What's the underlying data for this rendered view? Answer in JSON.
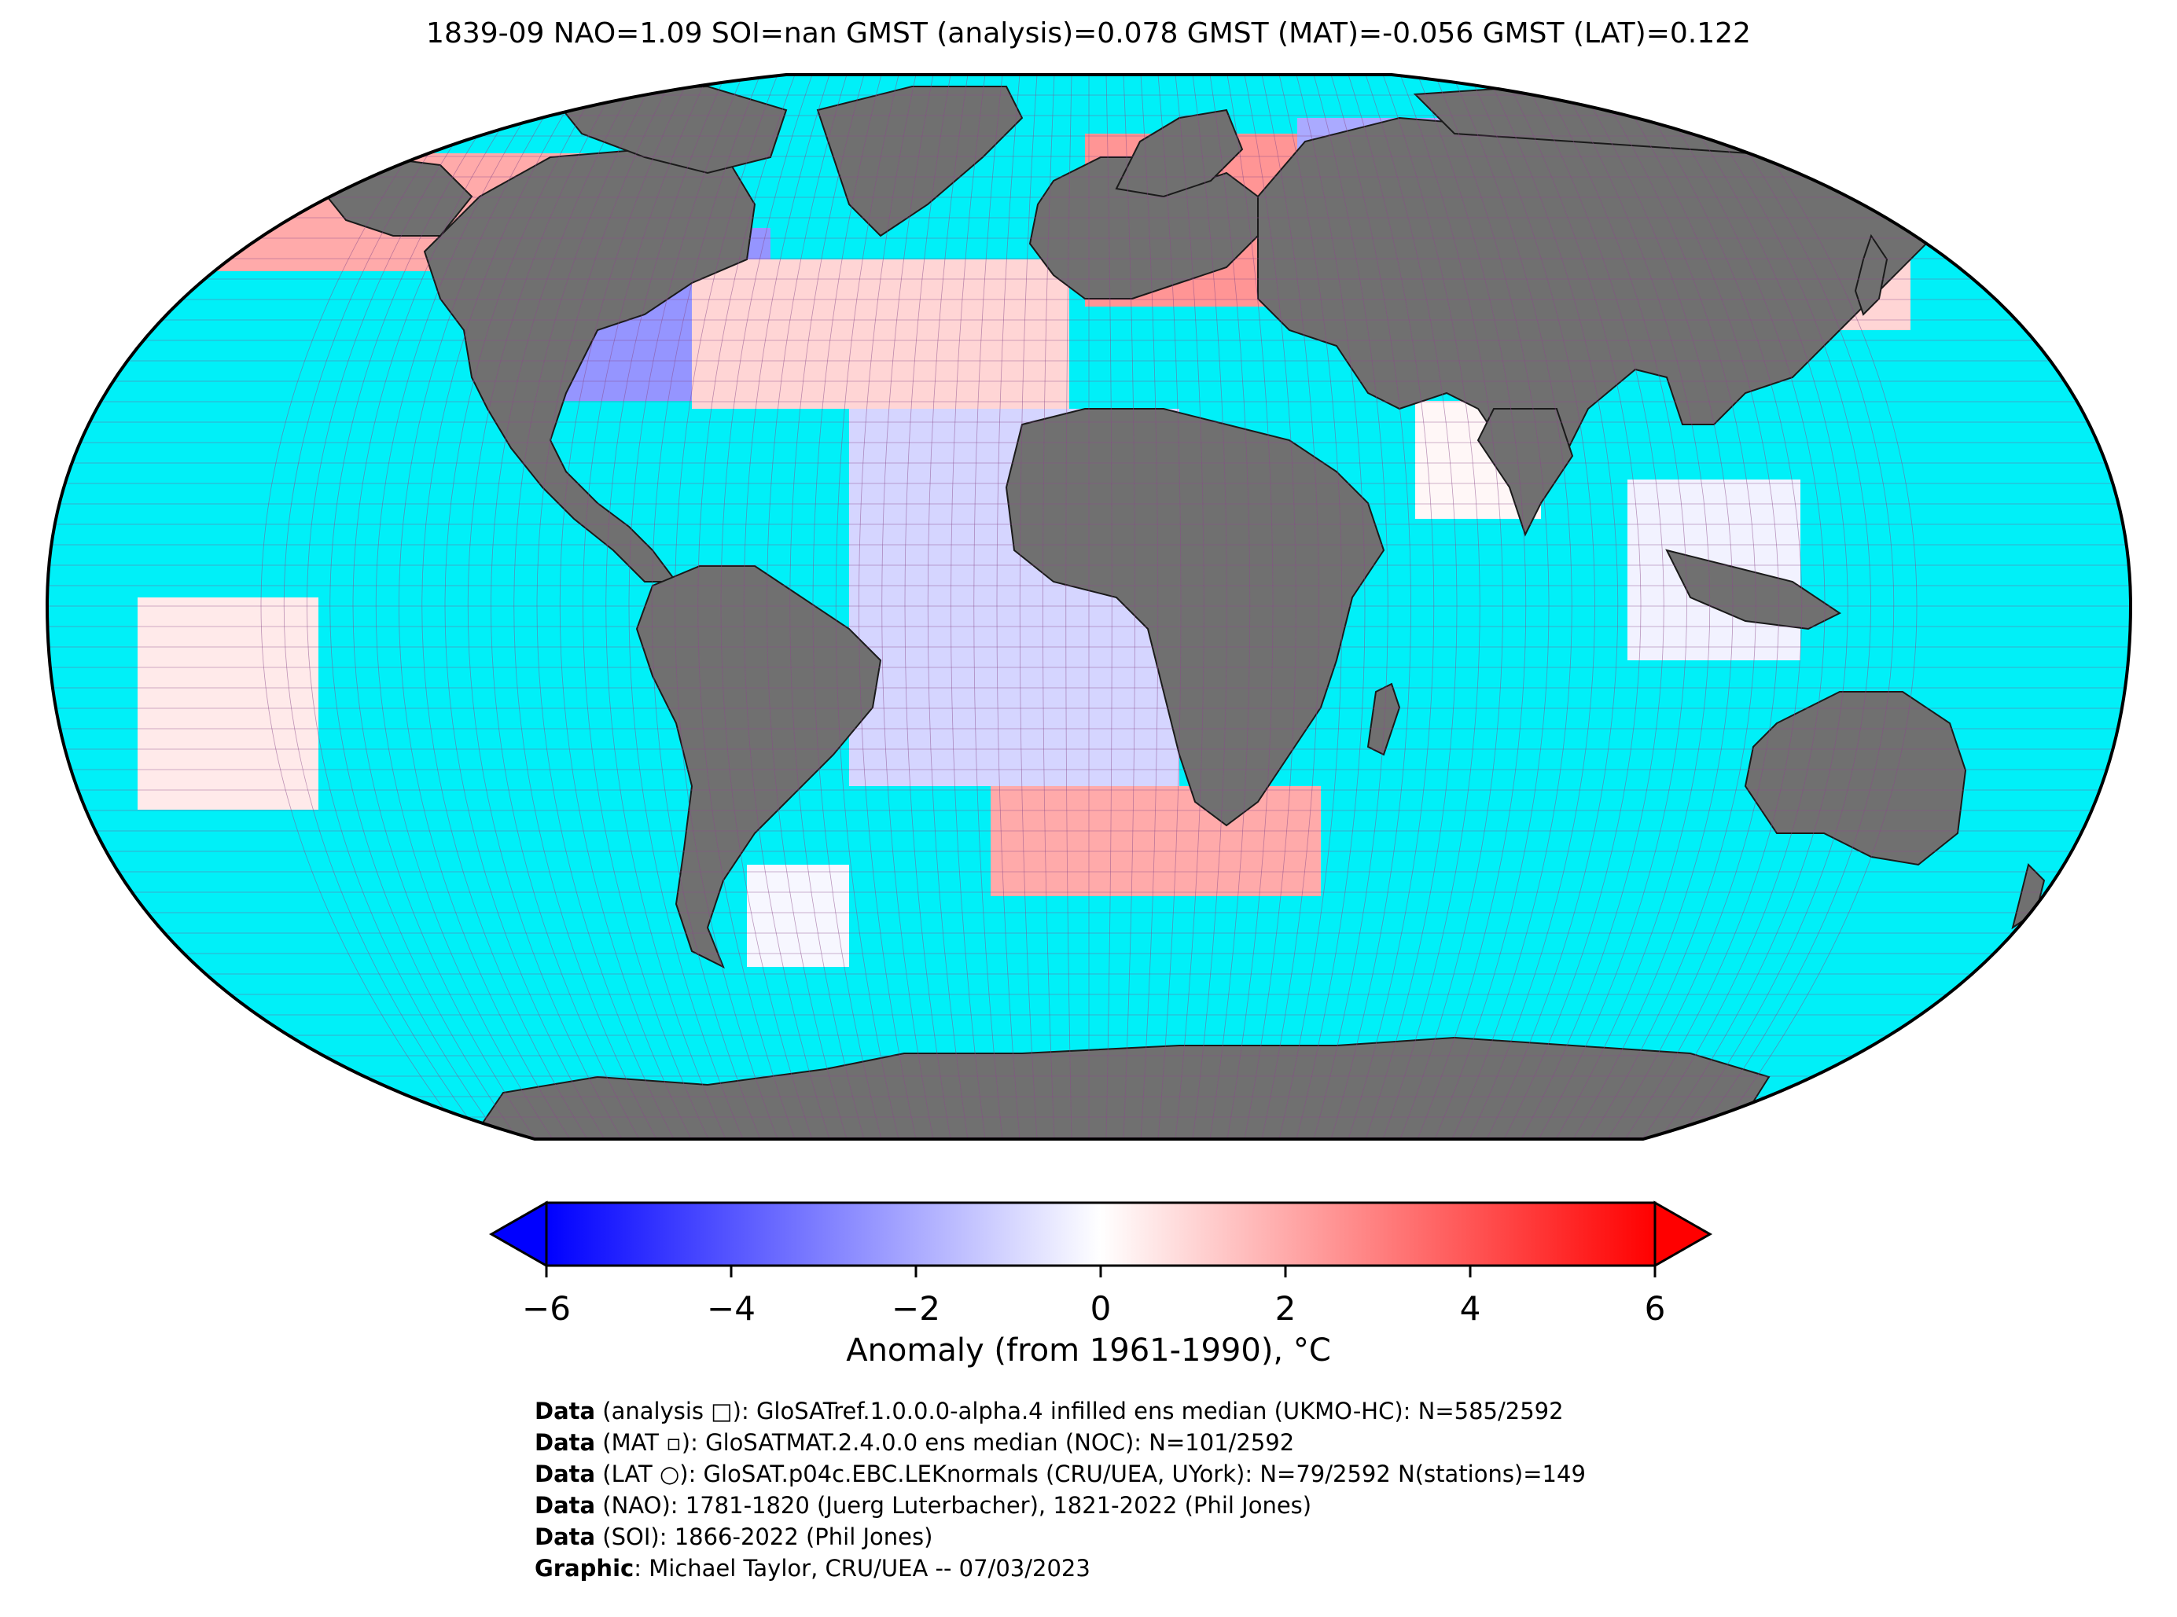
{
  "title": "1839-09 NAO=1.09 SOI=nan GMST (analysis)=0.078 GMST (MAT)=-0.056 GMST (LAT)=0.122",
  "colors": {
    "ocean": "#00f0f8",
    "land": "#707070",
    "grid": "#8a4a8a",
    "outline": "#000000"
  },
  "colorbar": {
    "label": "Anomaly (from 1961-1990), °C",
    "min": -6,
    "max": 6,
    "ticks": [
      "−6",
      "−4",
      "−2",
      "0",
      "2",
      "4",
      "6"
    ],
    "colors": [
      "#0000ff",
      "#ffffff",
      "#ff0000"
    ]
  },
  "credits": [
    {
      "bold": "Data",
      "text": " (analysis □): GloSATref.1.0.0.0-alpha.4 infilled ens median (UKMO-HC): N=585/2592"
    },
    {
      "bold": "Data",
      "text": " (MAT ▫): GloSATMAT.2.4.0.0 ens median (NOC): N=101/2592"
    },
    {
      "bold": "Data",
      "text": " (LAT ○): GloSAT.p04c.EBC.LEKnormals (CRU/UEA, UYork): N=79/2592 N(stations)=149"
    },
    {
      "bold": "Data",
      "text": " (NAO): 1781-1820 (Juerg Luterbacher), 1821-2022 (Phil Jones)"
    },
    {
      "bold": "Data",
      "text": " (SOI): 1866-2022 (Phil Jones)"
    },
    {
      "bold": "Graphic",
      "text": ": Michael Taylor, CRU/UEA -- 07/03/2023"
    }
  ],
  "anomaly_regions": [
    {
      "name": "north-pacific-alaska",
      "anomaly": 2.0
    },
    {
      "name": "eastern-north-america",
      "anomaly": -2.5
    },
    {
      "name": "central-north-atlantic",
      "anomaly": 1.0
    },
    {
      "name": "central-south-atlantic",
      "anomaly": -1.0
    },
    {
      "name": "western-russia",
      "anomaly": 2.5
    },
    {
      "name": "western-siberia",
      "anomaly": -2.0
    },
    {
      "name": "eastern-siberia",
      "anomaly": 1.0
    },
    {
      "name": "south-of-africa",
      "anomaly": 2.0
    },
    {
      "name": "central-pacific",
      "anomaly": 0.5
    },
    {
      "name": "arabian-sea",
      "anomaly": 0.2
    },
    {
      "name": "south-china-sea",
      "anomaly": -0.3
    },
    {
      "name": "patagonia",
      "anomaly": -0.2
    }
  ]
}
